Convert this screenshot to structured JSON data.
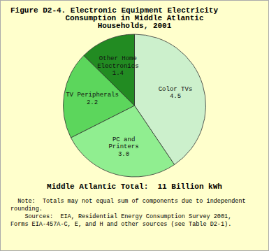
{
  "chart_data": {
    "type": "pie",
    "title": "Figure D2-4. Electronic Equipment Electricity\nConsumption in Middle Atlantic\nHouseholds, 2001",
    "categories": [
      "Color TVs",
      "PC and\nPrinters",
      "TV Peripherals",
      "Other Home\nElectronics"
    ],
    "values": [
      4.5,
      3.0,
      2.2,
      1.4
    ],
    "value_labels": [
      "4.5",
      "3.0",
      "2.2",
      "1.4"
    ],
    "data_labels": true,
    "colors": [
      "#ccf0cc",
      "#90ee90",
      "#5cd65c",
      "#228b22"
    ],
    "annotations": [
      "Middle Atlantic Total:  11 Billion kWh"
    ],
    "footnotes": [
      "  Note:  Totals may not equal sum of components due to independent",
      "rounding.",
      "    Sources:  EIA, Residential Energy Consumption Survey 2001,",
      "Forms EIA-457A-C, E, and H and other sources (see Table D2-1)."
    ]
  }
}
